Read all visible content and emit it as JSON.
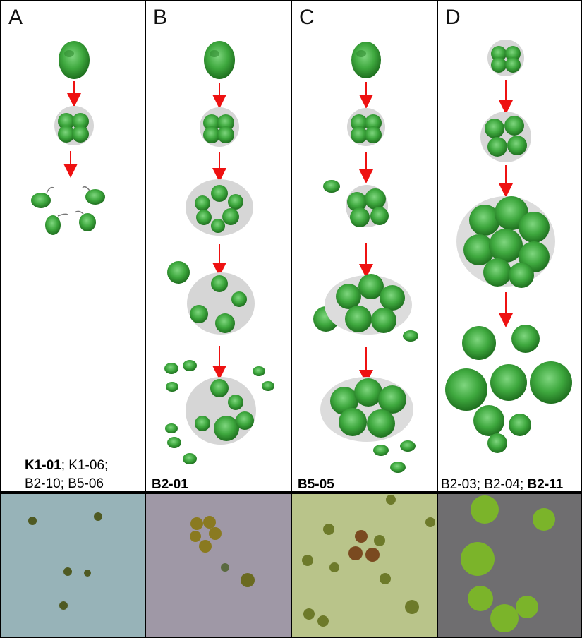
{
  "panels": [
    {
      "letter": "A",
      "strains_line1_bold": "K1-01",
      "strains_line1_rest": "; K1-06;",
      "strains_line2": "B2-10; B5-06"
    },
    {
      "letter": "B",
      "strains_bold": "B2-01"
    },
    {
      "letter": "C",
      "strains_bold": "B5-05"
    },
    {
      "letter": "D",
      "strains_rest": "B2-03; B2-04; ",
      "strains_bold": "B2-11"
    }
  ],
  "colors": {
    "cell_fill": "#3ea83e",
    "cell_dark": "#1f6f1f",
    "arrow": "#ee1111",
    "sheath": "#d6d6d6",
    "micro_bg_a": "#97b3b8",
    "micro_bg_b": "#9f98a6",
    "micro_bg_c": "#b9c48a",
    "micro_bg_d": "#6f6e70"
  }
}
